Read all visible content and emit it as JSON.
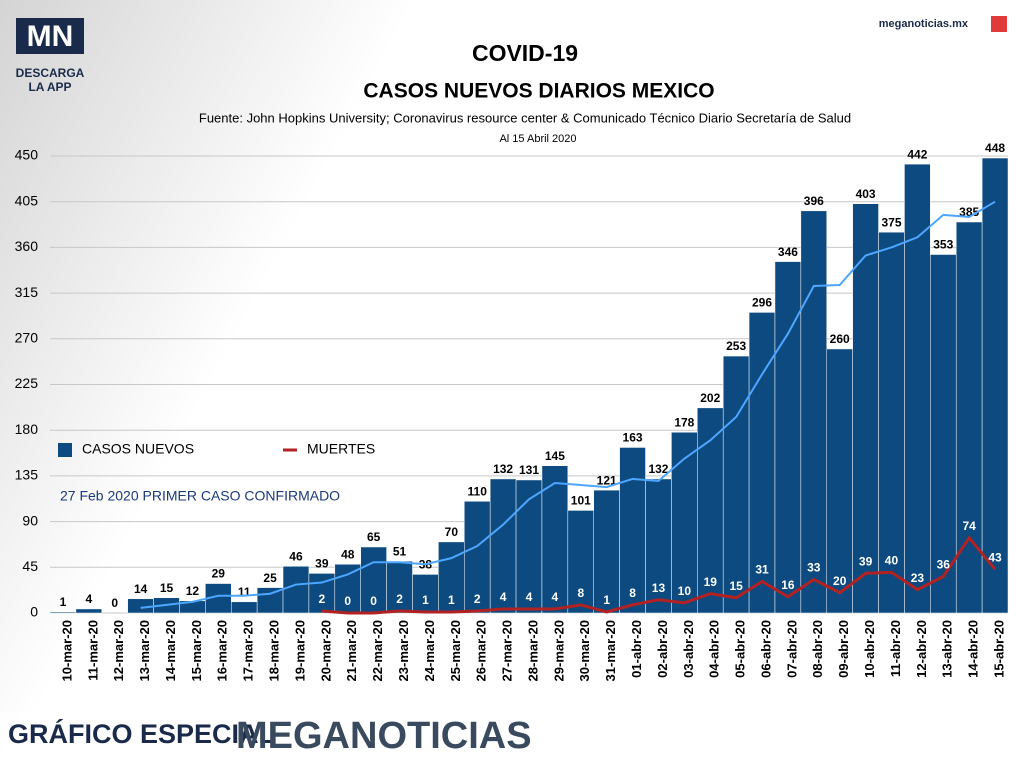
{
  "branding": {
    "logo": "MN",
    "app": [
      "DESCARGA",
      "LA APP"
    ],
    "site": "meganoticias.mx",
    "footer_left": "GRÁFICO ESPECIAL",
    "footer_right": "MEGANOTICIAS"
  },
  "chart_data": {
    "type": "bar",
    "title": "COVID-19",
    "subtitle": "CASOS NUEVOS DIARIOS MEXICO",
    "source": "Fuente: John Hopkins University; Coronavirus resource center & Comunicado Técnico Diario Secretaría de Salud",
    "date_note": "Al 15 Abril 2020",
    "annotation": "27 Feb 2020 PRIMER CASO CONFIRMADO",
    "categories": [
      "10-mar-20",
      "11-mar-20",
      "12-mar-20",
      "13-mar-20",
      "14-mar-20",
      "15-mar-20",
      "16-mar-20",
      "17-mar-20",
      "18-mar-20",
      "19-mar-20",
      "20-mar-20",
      "21-mar-20",
      "22-mar-20",
      "23-mar-20",
      "24-mar-20",
      "25-mar-20",
      "26-mar-20",
      "27-mar-20",
      "28-mar-20",
      "29-mar-20",
      "30-mar-20",
      "31-mar-20",
      "01-abr-20",
      "02-abr-20",
      "03-abr-20",
      "04-abr-20",
      "05-abr-20",
      "06-abr-20",
      "07-abr-20",
      "08-abr-20",
      "09-abr-20",
      "10-abr-20",
      "11-abr-20",
      "12-abr-20",
      "13-abr-20",
      "14-abr-20",
      "15-abr-20"
    ],
    "series": [
      {
        "name": "CASOS NUEVOS",
        "color": "#0d4a80",
        "kind": "bar",
        "values": [
          1,
          4,
          0,
          14,
          15,
          12,
          29,
          11,
          25,
          46,
          39,
          48,
          65,
          51,
          38,
          70,
          110,
          132,
          131,
          145,
          101,
          121,
          163,
          132,
          178,
          202,
          253,
          296,
          346,
          396,
          260,
          403,
          375,
          442,
          353,
          385,
          448
        ]
      },
      {
        "name": "MUERTES",
        "color": "#b22222",
        "kind": "line",
        "values": [
          null,
          null,
          null,
          null,
          null,
          null,
          null,
          null,
          null,
          null,
          2,
          0,
          0,
          2,
          1,
          1,
          2,
          4,
          4,
          4,
          8,
          1,
          8,
          13,
          10,
          19,
          15,
          31,
          16,
          33,
          20,
          39,
          40,
          23,
          36,
          74,
          43
        ]
      },
      {
        "color": "#4da6ff",
        "kind": "line",
        "values": [
          null,
          null,
          null,
          5,
          8,
          11,
          17,
          17,
          19,
          28,
          30,
          38,
          50,
          50,
          48,
          54,
          66,
          87,
          112,
          128,
          126,
          124,
          132,
          130,
          152,
          170,
          193,
          235,
          275,
          322,
          323,
          352,
          360,
          370,
          392,
          390,
          405
        ]
      }
    ],
    "ylim": [
      0,
      450
    ],
    "yticks": [
      0,
      45,
      90,
      135,
      180,
      225,
      270,
      315,
      360,
      405,
      450
    ],
    "grid": true,
    "legend": "middle-left"
  }
}
